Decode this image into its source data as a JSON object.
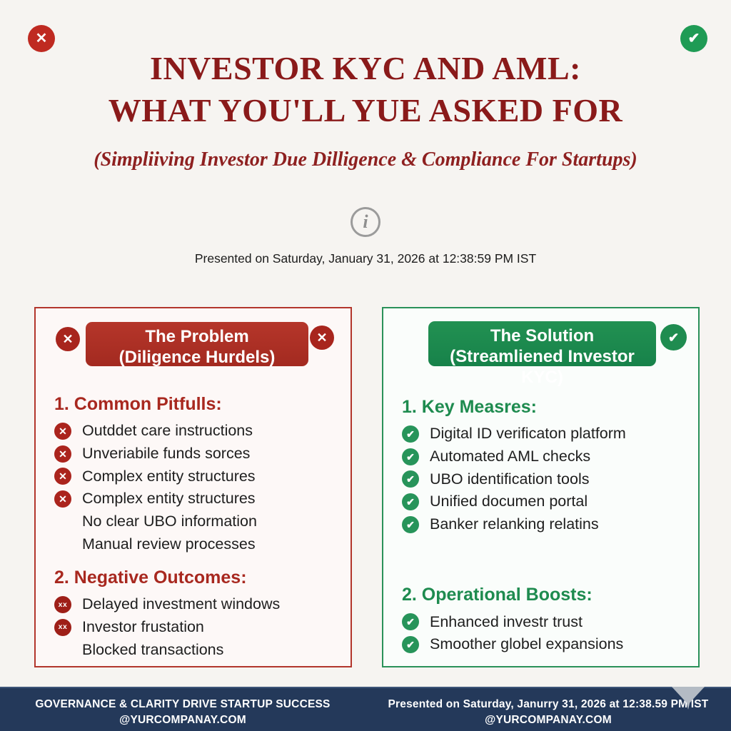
{
  "colors": {
    "title_red": "#8a1a1a",
    "panel_red": "#a8281f",
    "panel_green": "#1e8b4f",
    "footer_navy": "#24395a"
  },
  "icons": {
    "x": "✕",
    "xx": "xx",
    "check": "✔",
    "info": "i"
  },
  "header": {
    "title_line1": "INVESTOR KYC AND AML:",
    "title_line2": "WHAT YOU'LL YUE ASKED FOR",
    "subtitle": "(Simpliiving Investor Due Dilligence & Compliance For Startups)",
    "presented_line": "Presented on Saturday, January 31, 2026 at 12:38:59 PM IST"
  },
  "problem_panel": {
    "header_line1": "The Problem",
    "header_line2": "(Diligence Hurdels)",
    "sections": [
      {
        "heading": "1. Common Pitfulls:",
        "items": [
          {
            "icon": "x",
            "text": "Outddet care instructions"
          },
          {
            "icon": "x",
            "text": "Unveriabile funds sorces"
          },
          {
            "icon": "x",
            "text": "Complex entity structures"
          },
          {
            "icon": "x",
            "text": "Complex entity structures"
          },
          {
            "icon": "none",
            "text": "No clear UBO information"
          },
          {
            "icon": "none",
            "text": "Manual review processes"
          }
        ]
      },
      {
        "heading": "2. Negative Outcomes:",
        "items": [
          {
            "icon": "xx",
            "text": "Delayed investment windows"
          },
          {
            "icon": "xx",
            "text": "Investor frustation"
          },
          {
            "icon": "none",
            "text": "Blocked transactions"
          }
        ]
      }
    ]
  },
  "solution_panel": {
    "header_line1": "The Solution",
    "header_line2": "(Streamliened Investor KYC)",
    "sections": [
      {
        "heading": "1. Key Measres:",
        "items": [
          {
            "icon": "check",
            "text": "Digital ID verificaton platform"
          },
          {
            "icon": "check",
            "text": "Automated AML checks"
          },
          {
            "icon": "check",
            "text": "UBO identification tools"
          },
          {
            "icon": "check",
            "text": "Unified documen portal"
          },
          {
            "icon": "check",
            "text": "Banker relanking relatins"
          }
        ]
      },
      {
        "heading": "2. Operational Boosts:",
        "items": [
          {
            "icon": "check",
            "text": "Enhanced investr trust"
          },
          {
            "icon": "check",
            "text": "Smoother globel expansions"
          }
        ]
      }
    ]
  },
  "footer": {
    "left_line1": "GOVERNANCE & CLARITY DRIVE STARTUP SUCCESS",
    "left_line2": "@YURCOMPANAY.COM",
    "right_line1": "Presented on Saturday, Janurry 31, 2026 at 12:38.59 PM IST",
    "right_line2": "@YURCOMPANAY.COM"
  }
}
